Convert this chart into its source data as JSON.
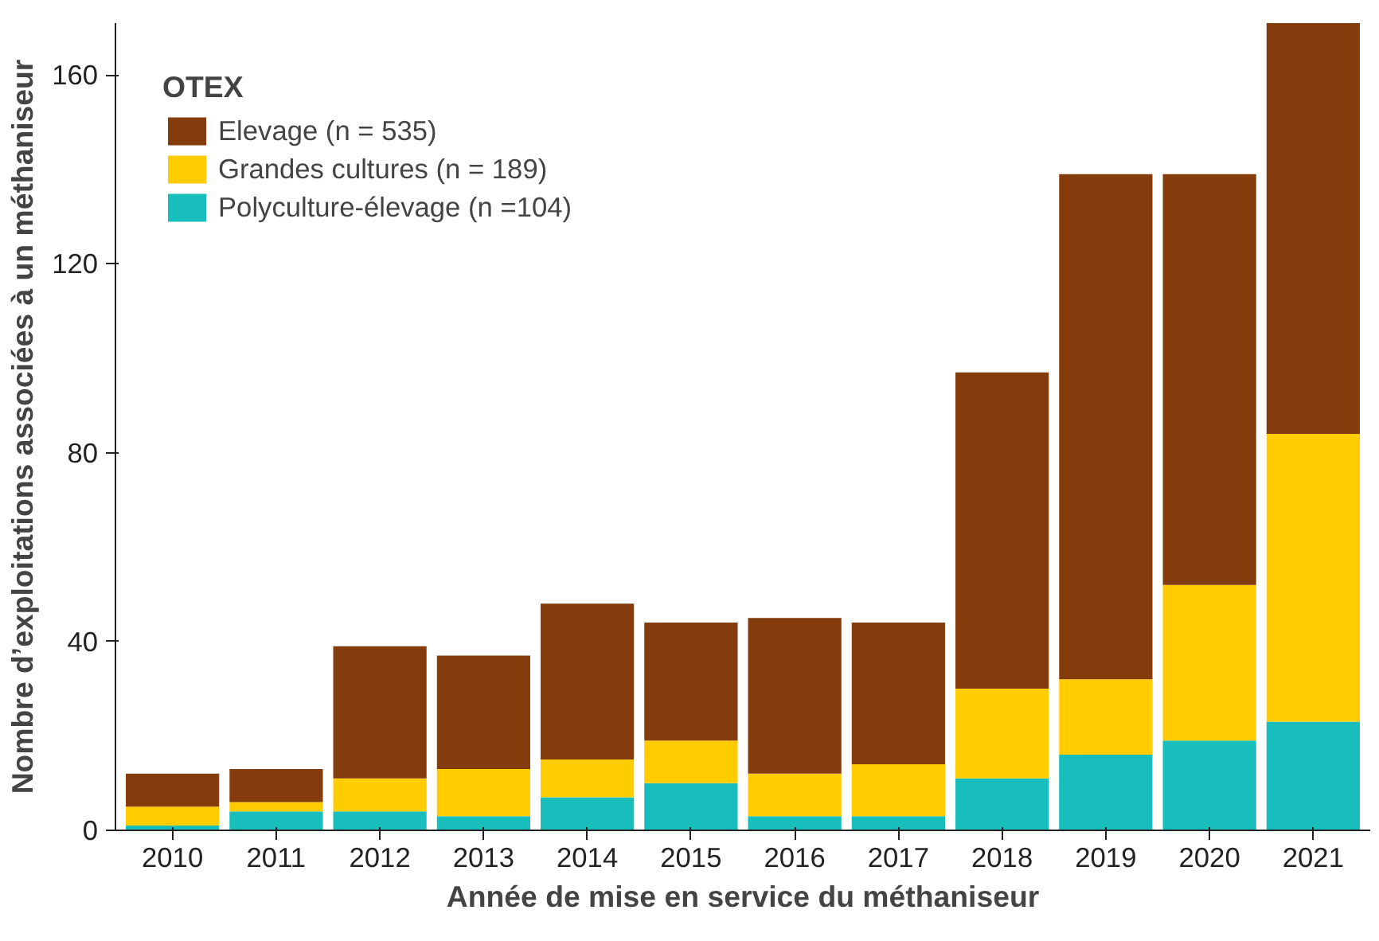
{
  "chart_data": {
    "type": "bar",
    "stacked": true,
    "xlabel": "Année de mise en service du méthaniseur",
    "ylabel": "Nombre d’exploitations associées à un méthaniseur",
    "legend_title": "OTEX",
    "legend": "top left",
    "categories": [
      "2010",
      "2011",
      "2012",
      "2013",
      "2014",
      "2015",
      "2016",
      "2017",
      "2018",
      "2019",
      "2020",
      "2021"
    ],
    "series": [
      {
        "name": "Polyculture-élevage (n =104)",
        "color": "#17bebb",
        "values": [
          1,
          4,
          4,
          3,
          7,
          10,
          3,
          3,
          11,
          16,
          19,
          23
        ]
      },
      {
        "name": "Grandes cultures (n = 189)",
        "color": "#ffcc00",
        "values": [
          4,
          2,
          7,
          10,
          8,
          9,
          9,
          11,
          19,
          16,
          33,
          61
        ]
      },
      {
        "name": "Elevage (n = 535)",
        "color": "#843c0c",
        "values": [
          7,
          7,
          28,
          24,
          33,
          25,
          33,
          30,
          67,
          107,
          87,
          87
        ]
      }
    ],
    "ylim": [
      0,
      171
    ],
    "yticks": [
      0,
      40,
      80,
      120,
      160
    ],
    "grid": false
  }
}
